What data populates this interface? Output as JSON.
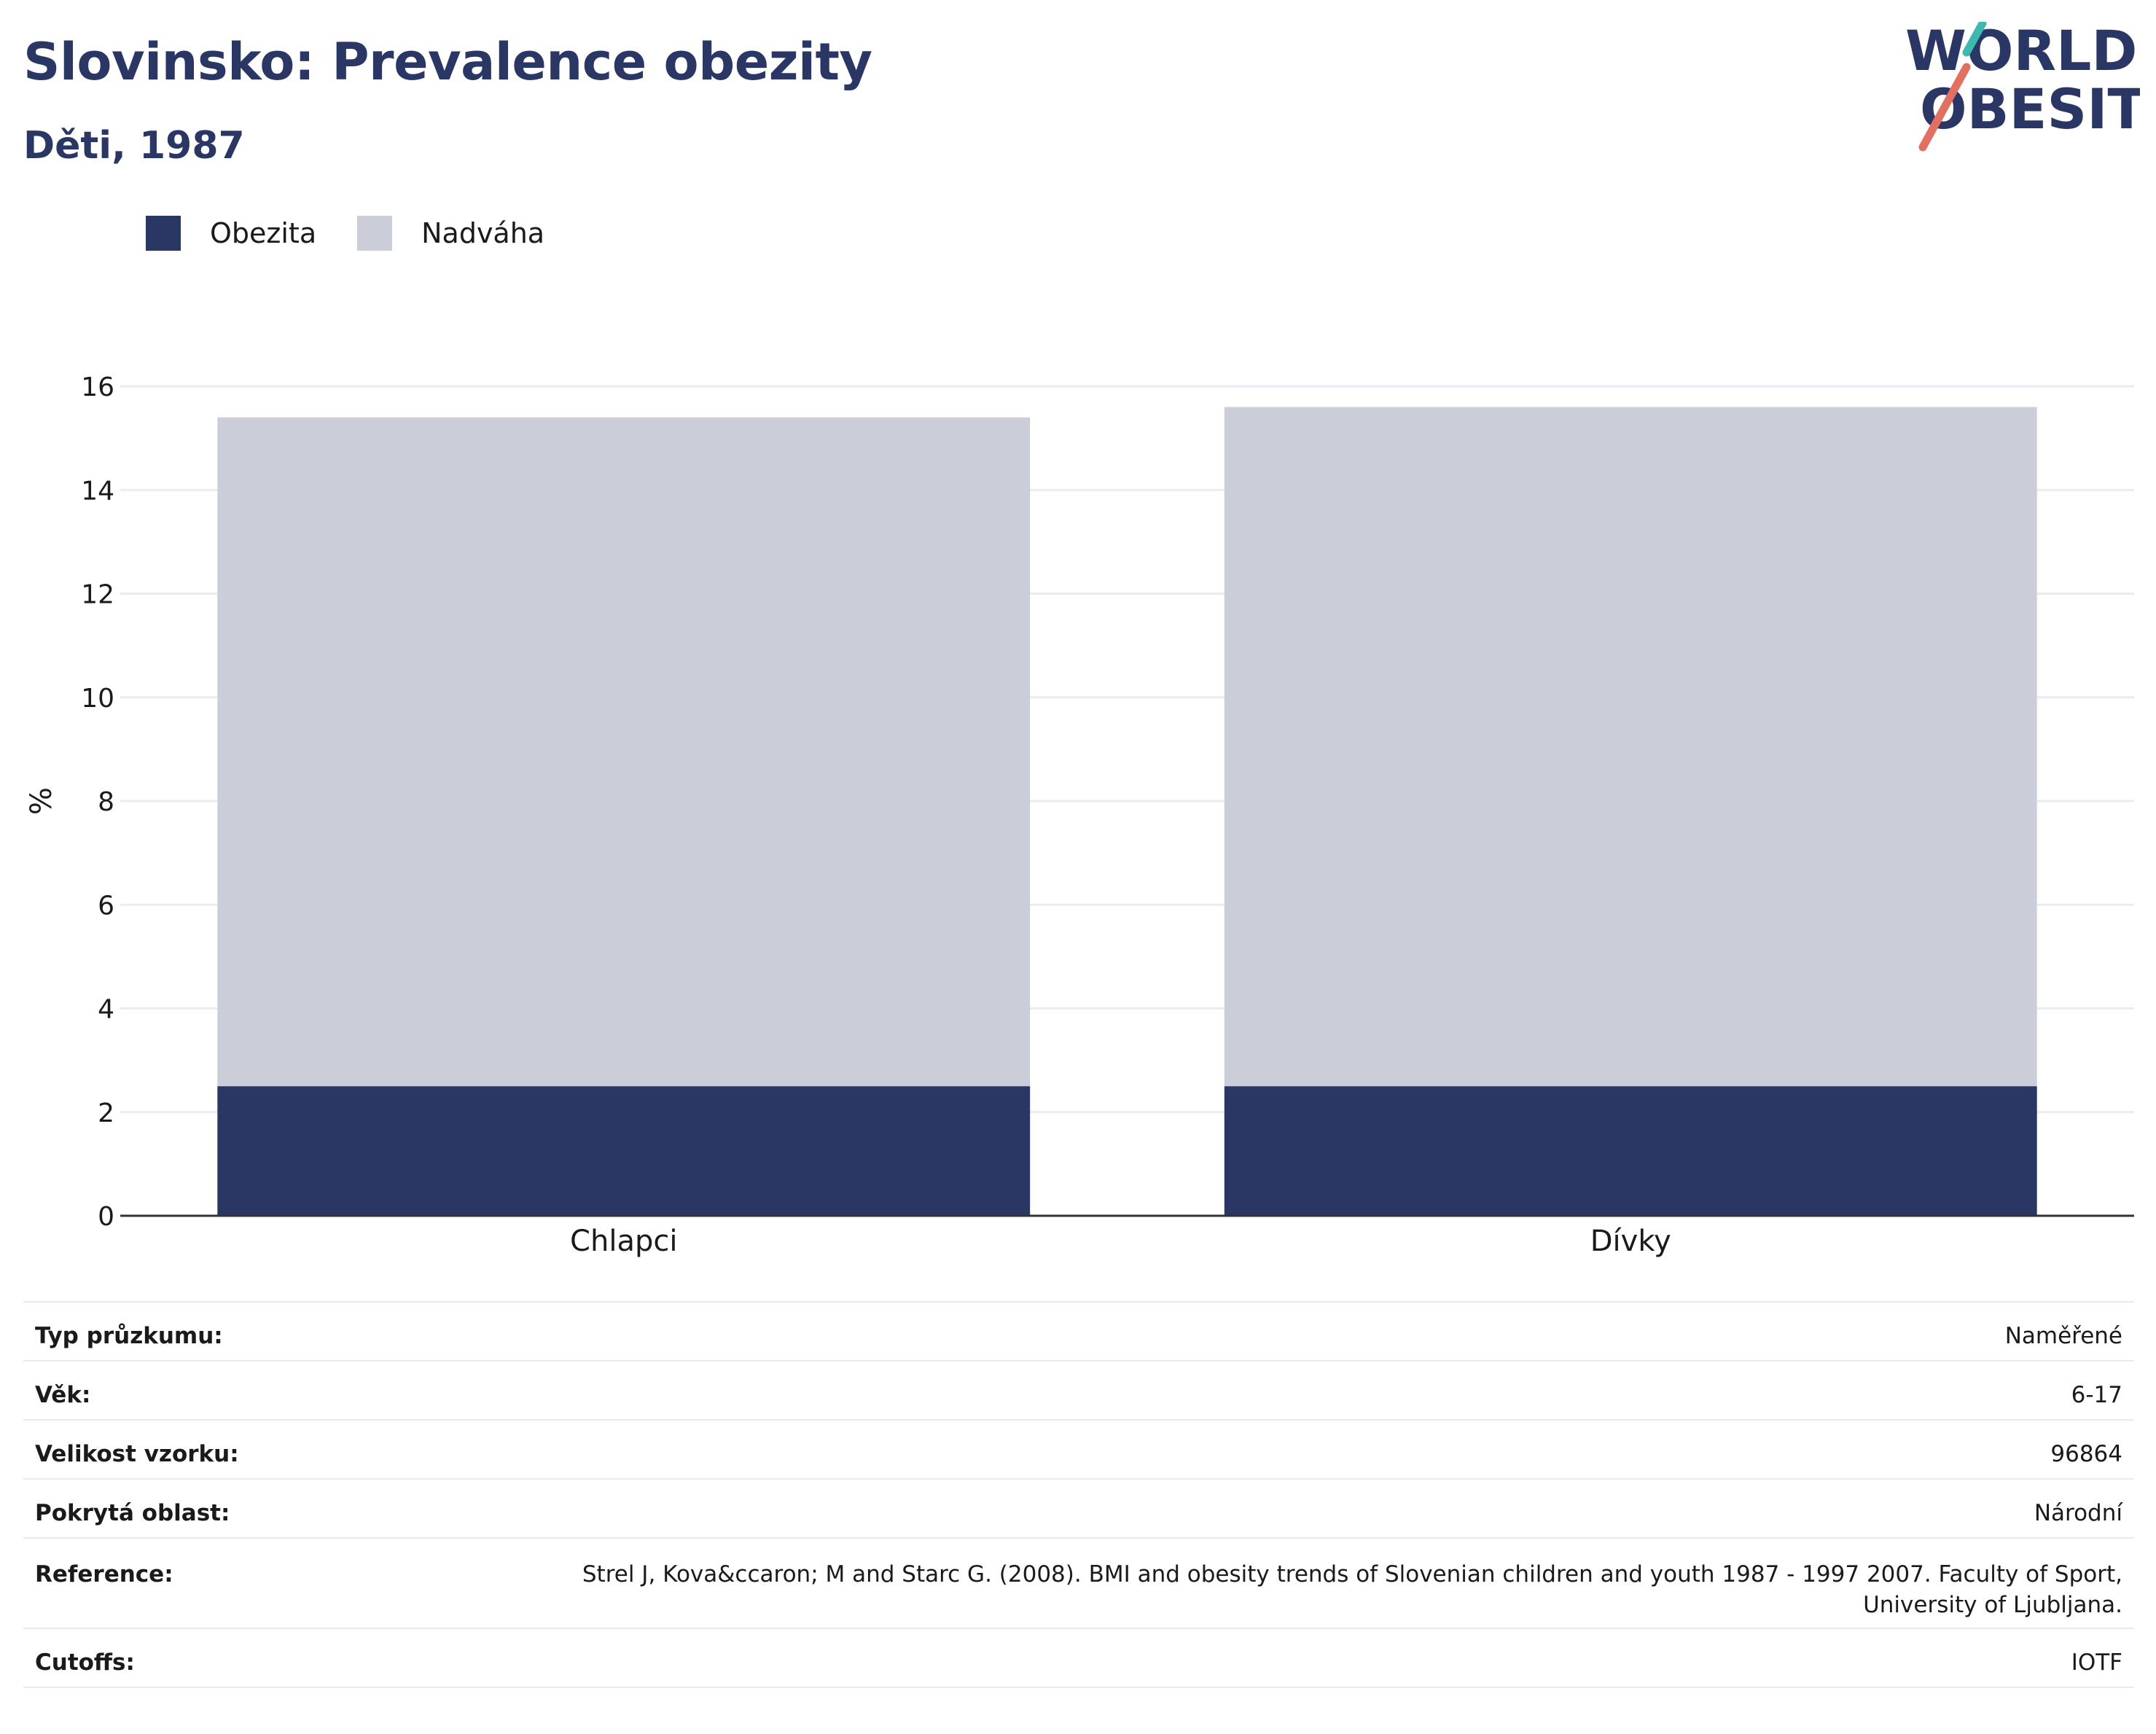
{
  "title": "Slovinsko: Prevalence obezity",
  "subtitle": "Děti, 1987",
  "logo": {
    "line1": "WORLD",
    "line2": "OBESITY"
  },
  "colors": {
    "obezita": "#2a3664",
    "nadvaha": "#cbcdd8",
    "title": "#2a3664",
    "grid": "#e9ecf1",
    "logo_teal": "#3fb8b2",
    "logo_coral": "#e27060"
  },
  "chart_data": {
    "type": "bar",
    "stacked": true,
    "categories": [
      "Chlapci",
      "Dívky"
    ],
    "series": [
      {
        "name": "Obezita",
        "values": [
          2.5,
          2.5
        ]
      },
      {
        "name": "Nadváha",
        "values": [
          12.9,
          13.1
        ]
      }
    ],
    "ylabel": "%",
    "xlabel": "",
    "ylim": [
      0,
      16
    ],
    "yticks": [
      0,
      2,
      4,
      6,
      8,
      10,
      12,
      14,
      16
    ],
    "grid": true,
    "legend": "top-left"
  },
  "info": [
    {
      "label": "Typ průzkumu:",
      "value": "Naměřené"
    },
    {
      "label": "Věk:",
      "value": "6-17"
    },
    {
      "label": "Velikost vzorku:",
      "value": "96864"
    },
    {
      "label": "Pokrytá oblast:",
      "value": "Národní"
    },
    {
      "label": "Reference:",
      "value": "Strel J, Kova&ccaron; M and Starc G. (2008). BMI and obesity trends of Slovenian children and youth 1987 - 1997 2007. Faculty of Sport, University of Ljubljana."
    },
    {
      "label": "Cutoffs:",
      "value": "IOTF"
    }
  ]
}
